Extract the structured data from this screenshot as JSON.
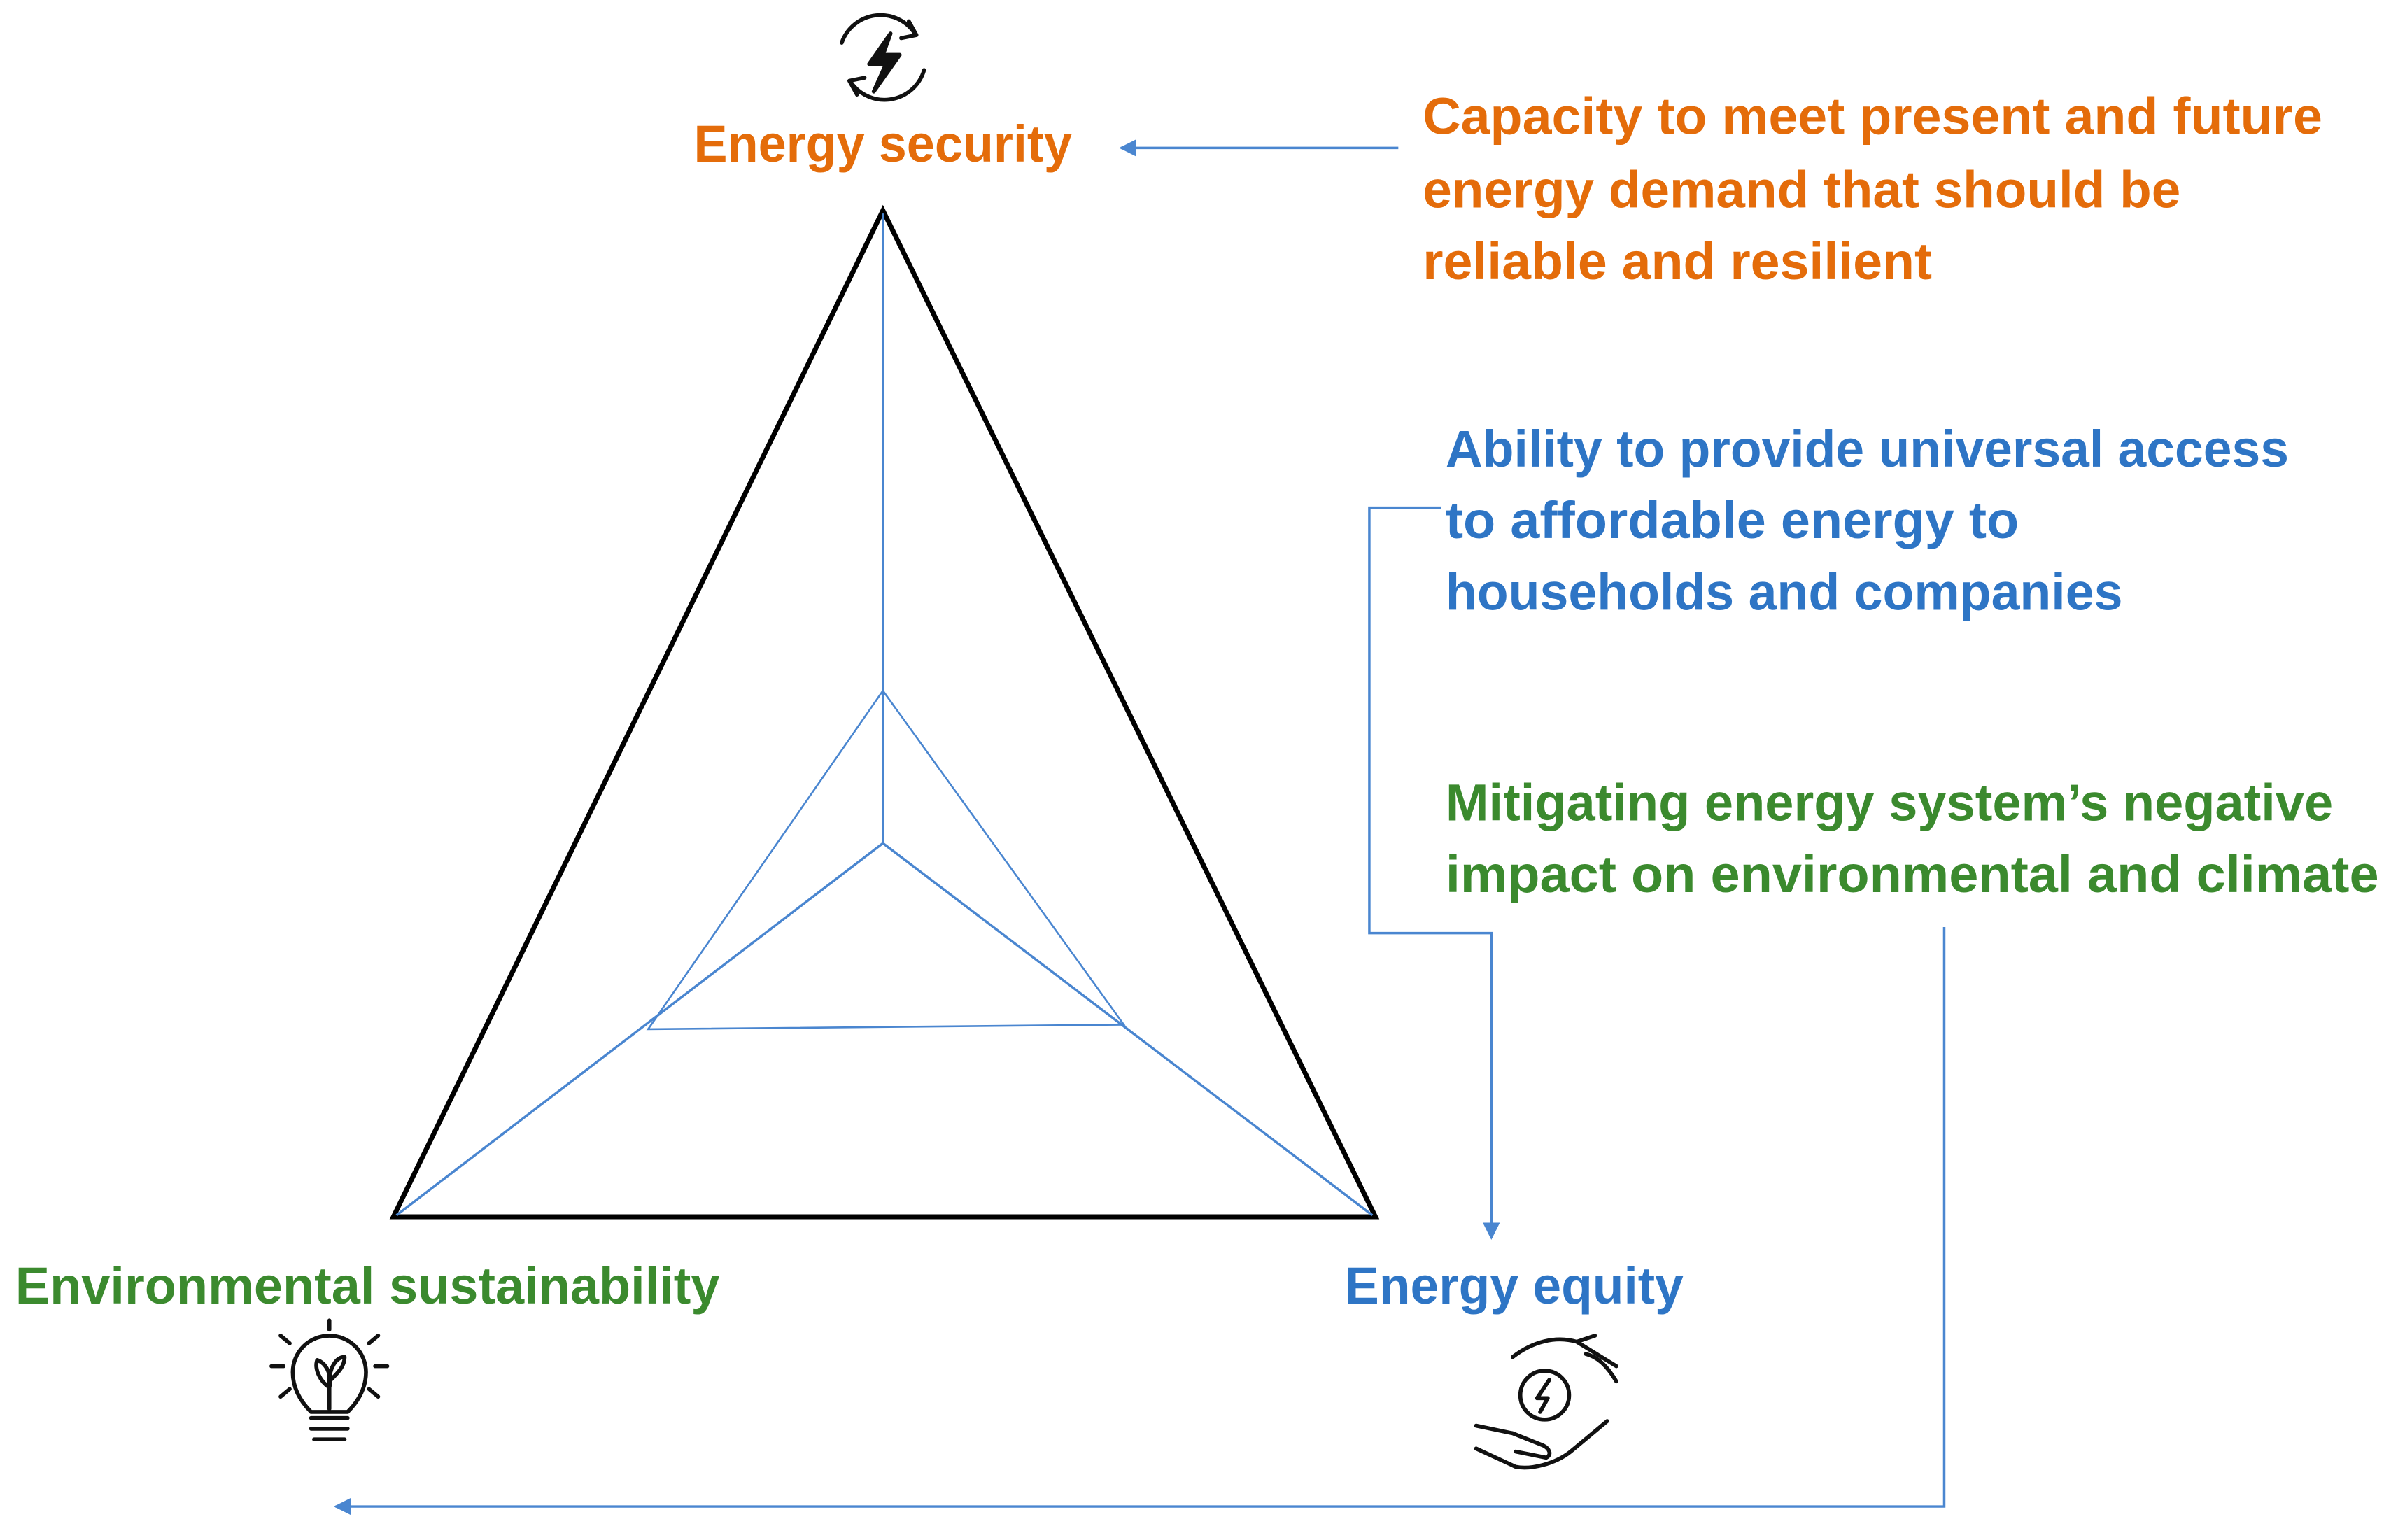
{
  "nodes": [
    {
      "label": "Energy security",
      "description": [
        "Capacity to meet present and future",
        "energy demand that should be",
        "reliable and resilient"
      ]
    },
    {
      "label": "Energy equity",
      "description": [
        "Ability to provide universal access",
        "to affordable energy to",
        "households and companies"
      ]
    },
    {
      "label": "Environmental sustainability",
      "description": [
        "Mitigating energy system’s negative",
        "impact on environmental and climate"
      ]
    }
  ]
}
